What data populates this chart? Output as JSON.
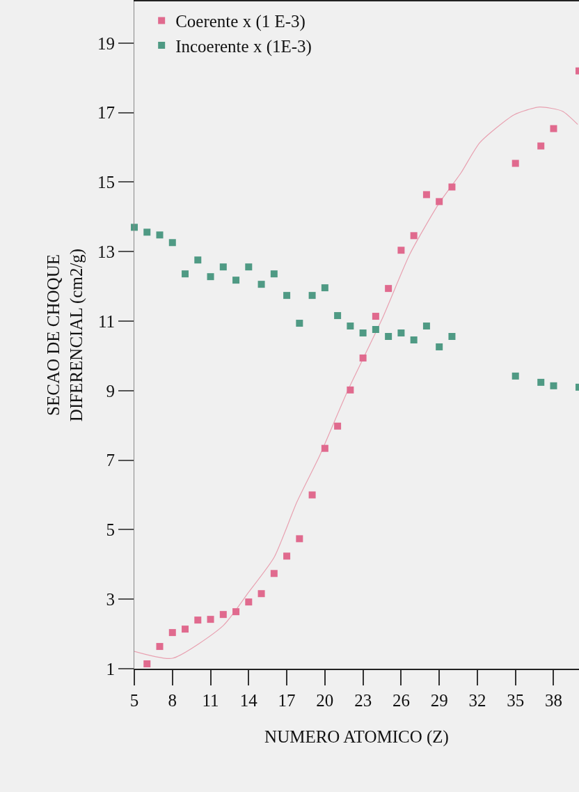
{
  "chart_data": {
    "type": "scatter",
    "xlabel": "NUMERO ATOMICO (Z)",
    "ylabel": "SECAO DE CHOQUE\nDIFERENCIAL (cm2/g)",
    "xlim": [
      5,
      40
    ],
    "xticks": [
      5,
      8,
      11,
      14,
      17,
      20,
      23,
      26,
      29,
      32,
      35,
      38
    ],
    "ylim": [
      1,
      20.2
    ],
    "yticks": [
      1,
      3,
      5,
      7,
      9,
      11,
      13,
      15,
      17,
      19
    ],
    "grid": false,
    "legend": "top left",
    "marker": "square",
    "series": [
      {
        "name": "Coerente x (1 E-3)",
        "color": "#e06a8e",
        "x": [
          6,
          7,
          8,
          9,
          10,
          11,
          12,
          13,
          14,
          15,
          16,
          17,
          18,
          19,
          20,
          21,
          22,
          23,
          24,
          25,
          26,
          27,
          28,
          29,
          30,
          35,
          37,
          38,
          40
        ],
        "values": [
          1.14,
          1.64,
          2.04,
          2.14,
          2.4,
          2.42,
          2.56,
          2.64,
          2.92,
          3.16,
          3.74,
          4.24,
          4.74,
          6.0,
          7.34,
          7.98,
          9.02,
          9.94,
          11.14,
          11.94,
          13.04,
          13.46,
          14.64,
          14.44,
          14.86,
          15.54,
          16.04,
          16.54,
          18.2
        ]
      },
      {
        "name": "Incoerente x (1E-3)",
        "color": "#4f9a84",
        "x": [
          5,
          6,
          7,
          8,
          9,
          10,
          11,
          12,
          13,
          14,
          15,
          16,
          17,
          18,
          19,
          20,
          21,
          22,
          23,
          24,
          25,
          26,
          27,
          28,
          29,
          30,
          35,
          37,
          38,
          40
        ],
        "values": [
          13.7,
          13.56,
          13.48,
          13.26,
          12.36,
          12.76,
          12.28,
          12.56,
          12.18,
          12.56,
          12.06,
          12.36,
          11.74,
          10.94,
          11.74,
          11.96,
          11.16,
          10.86,
          10.66,
          10.76,
          10.56,
          10.66,
          10.46,
          10.86,
          10.26,
          10.56,
          9.42,
          9.24,
          9.14,
          9.1
        ]
      },
      {
        "type": "line",
        "color": "#e8a0b0",
        "line_style": "solid",
        "marker": "none",
        "x": [
          5,
          8,
          12,
          14,
          16,
          17.8,
          19.6,
          21.8,
          24.5,
          26.7,
          29,
          30.7,
          32.2,
          34.9,
          36.9,
          38.7,
          39.9
        ],
        "values": [
          1.5,
          1.3,
          2.24,
          3.2,
          4.2,
          5.8,
          7.14,
          9.0,
          11.06,
          12.94,
          14.4,
          15.26,
          16.14,
          16.94,
          17.16,
          17.04,
          16.66
        ]
      }
    ]
  }
}
